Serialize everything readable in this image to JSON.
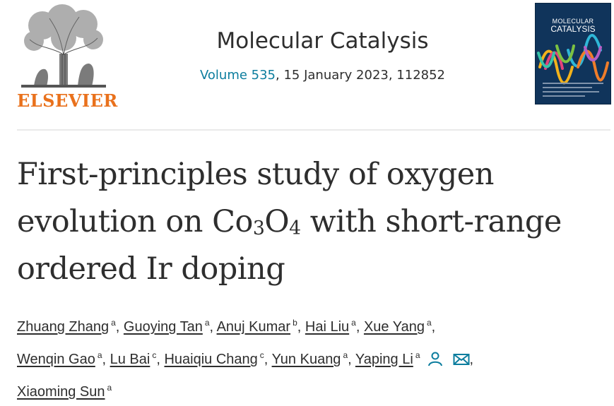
{
  "publisher": {
    "logo_text": "ELSEVIER",
    "logo_color": "#e9711c"
  },
  "journal": {
    "name": "Molecular Catalysis",
    "volume_link": "Volume 535",
    "issue_rest": ", 15 January 2023, 112852",
    "link_color": "#0c7d9e"
  },
  "cover": {
    "line1": "MOLECULAR",
    "line2": "CATALYSIS",
    "bg_color": "#10345b"
  },
  "article": {
    "title_part1": "First-principles study of oxygen evolution on Co",
    "title_sub1": "3",
    "title_part2": "O",
    "title_sub2": "4",
    "title_part3": " with short-range ordered Ir doping"
  },
  "authors": [
    {
      "name": "Zhuang Zhang",
      "aff": "a"
    },
    {
      "name": "Guoying Tan",
      "aff": "a"
    },
    {
      "name": "Anuj Kumar",
      "aff": "b"
    },
    {
      "name": "Hai Liu",
      "aff": "a"
    },
    {
      "name": "Xue Yang",
      "aff": "a"
    },
    {
      "name": "Wenqin Gao",
      "aff": "a"
    },
    {
      "name": "Lu Bai",
      "aff": "c"
    },
    {
      "name": "Huaiqiu Chang",
      "aff": "c"
    },
    {
      "name": "Yun Kuang",
      "aff": "a"
    },
    {
      "name": "Yaping Li",
      "aff": "a"
    },
    {
      "name": "Xiaoming Sun",
      "aff": "a"
    }
  ],
  "icons": {
    "person": "person-icon",
    "mail": "envelope-icon",
    "icon_color": "#0c7d9e"
  },
  "sep": ","
}
